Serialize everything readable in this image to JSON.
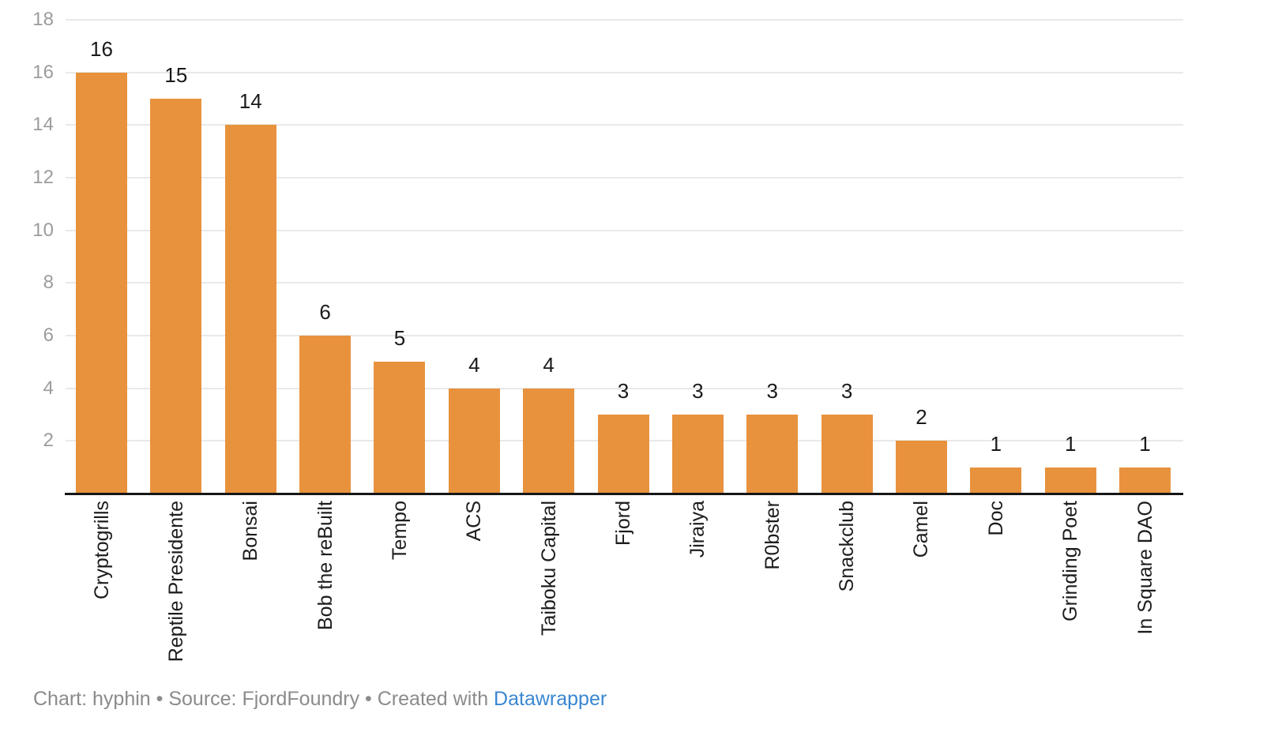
{
  "chart_data": {
    "type": "bar",
    "categories": [
      "Cryptogrills",
      "Reptile Presidente",
      "Bonsai",
      "Bob the reBuilt",
      "Tempo",
      "ACS",
      "Taiboku Capital",
      "Fjord",
      "Jiraiya",
      "R0bster",
      "Snackclub",
      "Camel",
      "Doc",
      "Grinding Poet",
      "In Square DAO"
    ],
    "values": [
      16,
      15,
      14,
      6,
      5,
      4,
      4,
      3,
      3,
      3,
      3,
      2,
      1,
      1,
      1
    ],
    "title": "",
    "xlabel": "",
    "ylabel": "",
    "ylim": [
      0,
      18
    ],
    "yticks": [
      2,
      4,
      6,
      8,
      10,
      12,
      14,
      16,
      18
    ],
    "grid": true,
    "legend": false,
    "value_labels_shown": true,
    "category_label_rotation": "vertical-bottom-to-top"
  },
  "colors": {
    "bar": "#E8923D",
    "grid": "#E9E9E9",
    "axis_line": "#161616",
    "tick_label": "#9C9C9C",
    "value_label": "#1A1A1A",
    "category_label": "#1D1D1D",
    "footer_text": "#8B8B8B",
    "link": "#3A87D1",
    "background": "#FFFFFF"
  },
  "footer": {
    "attribution": "Chart: hyphin • Source: FjordFoundry • Created with ",
    "link_label": "Datawrapper"
  }
}
